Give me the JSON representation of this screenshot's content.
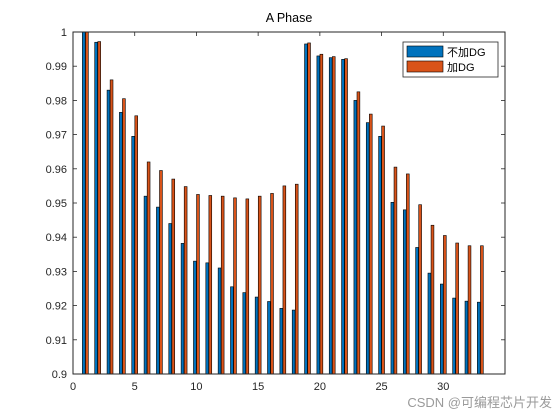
{
  "chart_data": {
    "type": "bar",
    "title": "A Phase",
    "xlabel": "",
    "ylabel": "",
    "xlim": [
      0,
      35
    ],
    "ylim": [
      0.9,
      1
    ],
    "xticks": [
      0,
      5,
      10,
      15,
      20,
      25,
      30
    ],
    "yticks": [
      0.9,
      0.91,
      0.92,
      0.93,
      0.94,
      0.95,
      0.96,
      0.97,
      0.98,
      0.99,
      1
    ],
    "x": [
      1,
      2,
      3,
      4,
      5,
      6,
      7,
      8,
      9,
      10,
      11,
      12,
      13,
      14,
      15,
      16,
      17,
      18,
      19,
      20,
      21,
      22,
      23,
      24,
      25,
      26,
      27,
      28,
      29,
      30,
      31,
      32,
      33
    ],
    "grid": false,
    "legend_position": "top-right",
    "series": [
      {
        "name": "不加DG",
        "color": "#0072bd",
        "values": [
          1.0,
          0.997,
          0.983,
          0.9765,
          0.9695,
          0.952,
          0.9488,
          0.944,
          0.9382,
          0.933,
          0.9325,
          0.931,
          0.9255,
          0.9238,
          0.9225,
          0.9212,
          0.9192,
          0.9187,
          0.9965,
          0.993,
          0.9925,
          0.992,
          0.98,
          0.9735,
          0.9695,
          0.9502,
          0.948,
          0.937,
          0.9295,
          0.9263,
          0.9222,
          0.9213,
          0.921
        ]
      },
      {
        "name": "加DG",
        "color": "#d95319",
        "values": [
          1.0,
          0.9972,
          0.986,
          0.9805,
          0.9755,
          0.962,
          0.9595,
          0.957,
          0.9548,
          0.9525,
          0.9522,
          0.952,
          0.9515,
          0.9512,
          0.952,
          0.9528,
          0.955,
          0.9555,
          0.9968,
          0.9935,
          0.9928,
          0.9922,
          0.9825,
          0.976,
          0.9725,
          0.9605,
          0.9585,
          0.9495,
          0.9435,
          0.9405,
          0.9383,
          0.9375,
          0.9375
        ]
      }
    ]
  },
  "watermark": {
    "text": "CSDN @可编程芯片开发"
  }
}
